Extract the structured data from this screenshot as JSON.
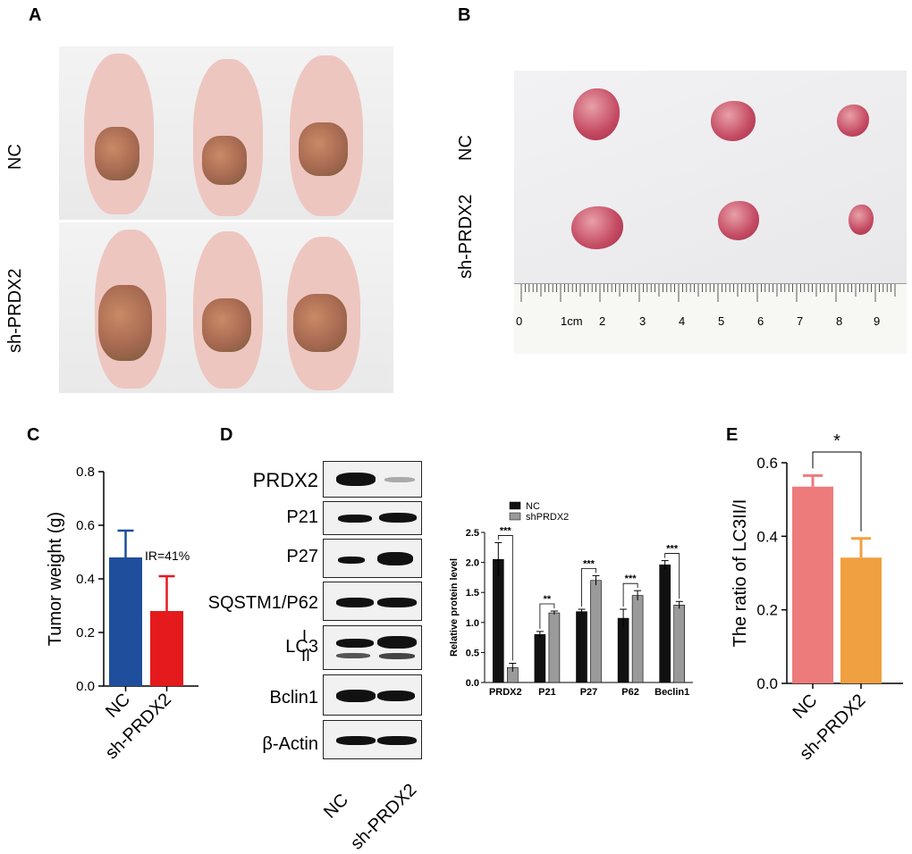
{
  "panels": {
    "a": "A",
    "b": "B",
    "c": "C",
    "d": "D",
    "e": "E"
  },
  "panel_a": {
    "row_labels": [
      "NC",
      "sh-PRDX2"
    ]
  },
  "panel_b": {
    "row_labels": [
      "NC",
      "sh-PRDX2"
    ],
    "ruler_labels": [
      "0",
      "1cm",
      "2",
      "3",
      "4",
      "5",
      "6",
      "7",
      "8",
      "9"
    ]
  },
  "panel_d_blot": {
    "bands": [
      "PRDX2",
      "P21",
      "P27",
      "SQSTM1/P62",
      "LC3",
      "Bclin1",
      "β-Actin"
    ],
    "lc3_sub": [
      "I",
      "II"
    ],
    "lanes": [
      "NC",
      "sh-PRDX2"
    ]
  },
  "colors": {
    "nc_blue": "#1f4e9c",
    "sh_red": "#e41a1c",
    "nc_pink": "#ee7b7b",
    "sh_orange": "#f0a040",
    "black_bar": "#111111",
    "grey_bar": "#9a9a9a"
  },
  "chart_data": [
    {
      "id": "C",
      "type": "bar",
      "categories": [
        "NC",
        "sh-PRDX2"
      ],
      "values": [
        0.48,
        0.28
      ],
      "errors": [
        0.1,
        0.13
      ],
      "ylabel": "Tumor weight (g)",
      "ylim": [
        0,
        0.8
      ],
      "yticks": [
        "0.0",
        "0.2",
        "0.4",
        "0.6",
        "0.8"
      ],
      "annotation": "IR=41%"
    },
    {
      "id": "D",
      "type": "bar",
      "categories": [
        "PRDX2",
        "P21",
        "P27",
        "P62",
        "Beclin1"
      ],
      "series": [
        {
          "name": "NC",
          "values": [
            2.05,
            0.8,
            1.18,
            1.07,
            1.96
          ],
          "errors": [
            0.28,
            0.05,
            0.04,
            0.15,
            0.07
          ]
        },
        {
          "name": "shPRDX2",
          "values": [
            0.25,
            1.16,
            1.7,
            1.45,
            1.29
          ],
          "errors": [
            0.07,
            0.03,
            0.08,
            0.08,
            0.06
          ]
        }
      ],
      "significance": [
        "***",
        "**",
        "***",
        "***",
        "***"
      ],
      "ylabel": "Relative protein level",
      "ylim": [
        0,
        2.5
      ],
      "yticks": [
        "0.0",
        "0.5",
        "1.0",
        "1.5",
        "2.0",
        "2.5"
      ]
    },
    {
      "id": "E",
      "type": "bar",
      "categories": [
        "NC",
        "sh-PRDX2"
      ],
      "values": [
        0.535,
        0.342
      ],
      "errors": [
        0.03,
        0.052
      ],
      "ylabel": "The ratio of LC3II/I",
      "ylim": [
        0,
        0.6
      ],
      "yticks": [
        "0.0",
        "0.2",
        "0.4",
        "0.6"
      ],
      "significance": "*"
    }
  ]
}
